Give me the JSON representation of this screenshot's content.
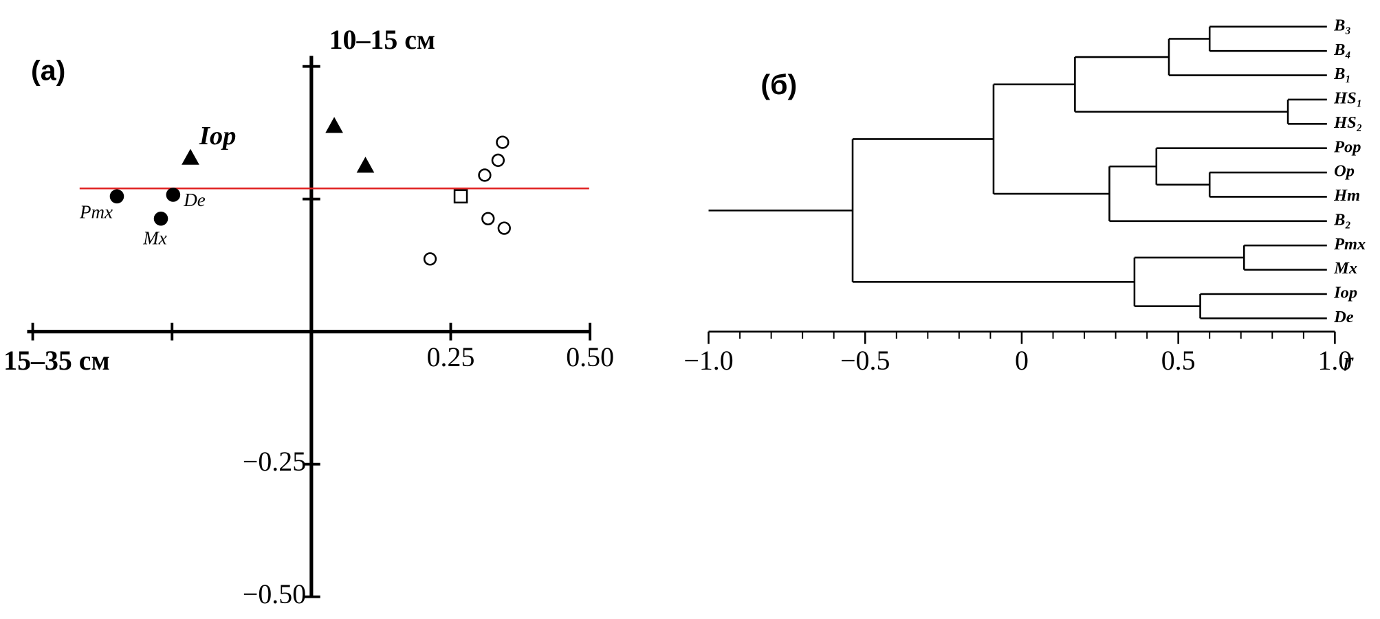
{
  "chart_data": [
    {
      "type": "scatter",
      "panel_label": "(a)",
      "y_label": "10–15 см",
      "x_label": "15–35 см",
      "xlim": [
        -0.51,
        0.5
      ],
      "ylim": [
        -0.5,
        0.52
      ],
      "xticks": [
        {
          "value": -0.5,
          "label": null
        },
        {
          "value": -0.25,
          "label": null
        },
        0.25,
        {
          "value": 0.5,
          "label": "0.50"
        }
      ],
      "yticks": [
        {
          "value": 0.5,
          "label": null
        },
        {
          "value": 0.25,
          "label": null
        },
        {
          "value": -0.25,
          "label": "−0.25"
        },
        {
          "value": -0.5,
          "label": "−0.50"
        }
      ],
      "reference_line": {
        "y": 0.27,
        "color": "#e02020"
      },
      "series": [
        {
          "marker": "filled-circle",
          "color": "#000000",
          "x": [
            -0.349,
            -0.248,
            -0.27
          ],
          "y": [
            0.255,
            0.258,
            0.213
          ],
          "labels": [
            "Pmx",
            "De",
            "Mx"
          ]
        },
        {
          "marker": "filled-triangle",
          "color": "#000000",
          "x": [
            -0.217,
            0.041,
            0.097
          ],
          "y": [
            0.328,
            0.388,
            0.313
          ],
          "labels": [
            "Iop",
            null,
            null
          ]
        },
        {
          "marker": "open-square",
          "color": "#000000",
          "x": [
            0.268
          ],
          "y": [
            0.255
          ],
          "labels": [
            null
          ]
        },
        {
          "marker": "open-circle",
          "color": "#000000",
          "x": [
            0.343,
            0.335,
            0.311,
            0.317,
            0.346,
            0.213
          ],
          "y": [
            0.357,
            0.323,
            0.295,
            0.213,
            0.195,
            0.137
          ],
          "labels": [
            null,
            null,
            null,
            null,
            null,
            null
          ]
        }
      ]
    },
    {
      "type": "dendrogram",
      "panel_label": "(б)",
      "x_label": "r",
      "xlim": [
        -1.0,
        1.0
      ],
      "xticks": [
        {
          "value": -1.0,
          "label": "−1.0"
        },
        {
          "value": -0.5,
          "label": "−0.5"
        },
        0,
        0.5,
        {
          "value": 1.0,
          "label": "1.0"
        }
      ],
      "xticks_minor": [
        -0.9,
        -0.8,
        -0.7,
        -0.6,
        -0.4,
        -0.3,
        -0.2,
        -0.1,
        0.1,
        0.2,
        0.3,
        0.4,
        0.6,
        0.7,
        0.8,
        0.9
      ],
      "tree": {
        "height": -0.54,
        "children": [
          {
            "height": -0.09,
            "children": [
              {
                "height": 0.17,
                "children": [
                  {
                    "height": 0.47,
                    "children": [
                      {
                        "height": 0.6,
                        "children": [
                          {
                            "label": "B₃"
                          },
                          {
                            "label": "B₄"
                          }
                        ]
                      },
                      {
                        "label": "B₁"
                      }
                    ]
                  },
                  {
                    "height": 0.85,
                    "children": [
                      {
                        "label": "HS₁"
                      },
                      {
                        "label": "HS₂"
                      }
                    ]
                  }
                ]
              },
              {
                "height": 0.28,
                "children": [
                  {
                    "height": 0.43,
                    "children": [
                      {
                        "label": "Pop"
                      },
                      {
                        "height": 0.6,
                        "children": [
                          {
                            "label": "Op"
                          },
                          {
                            "label": "Hm"
                          }
                        ]
                      }
                    ]
                  },
                  {
                    "label": "B₂"
                  }
                ]
              }
            ]
          },
          {
            "height": 0.36,
            "children": [
              {
                "height": 0.71,
                "children": [
                  {
                    "label": "Pmx"
                  },
                  {
                    "label": "Mx"
                  }
                ]
              },
              {
                "height": 0.57,
                "children": [
                  {
                    "label": "Iop"
                  },
                  {
                    "label": "De"
                  }
                ]
              }
            ]
          }
        ]
      }
    }
  ]
}
